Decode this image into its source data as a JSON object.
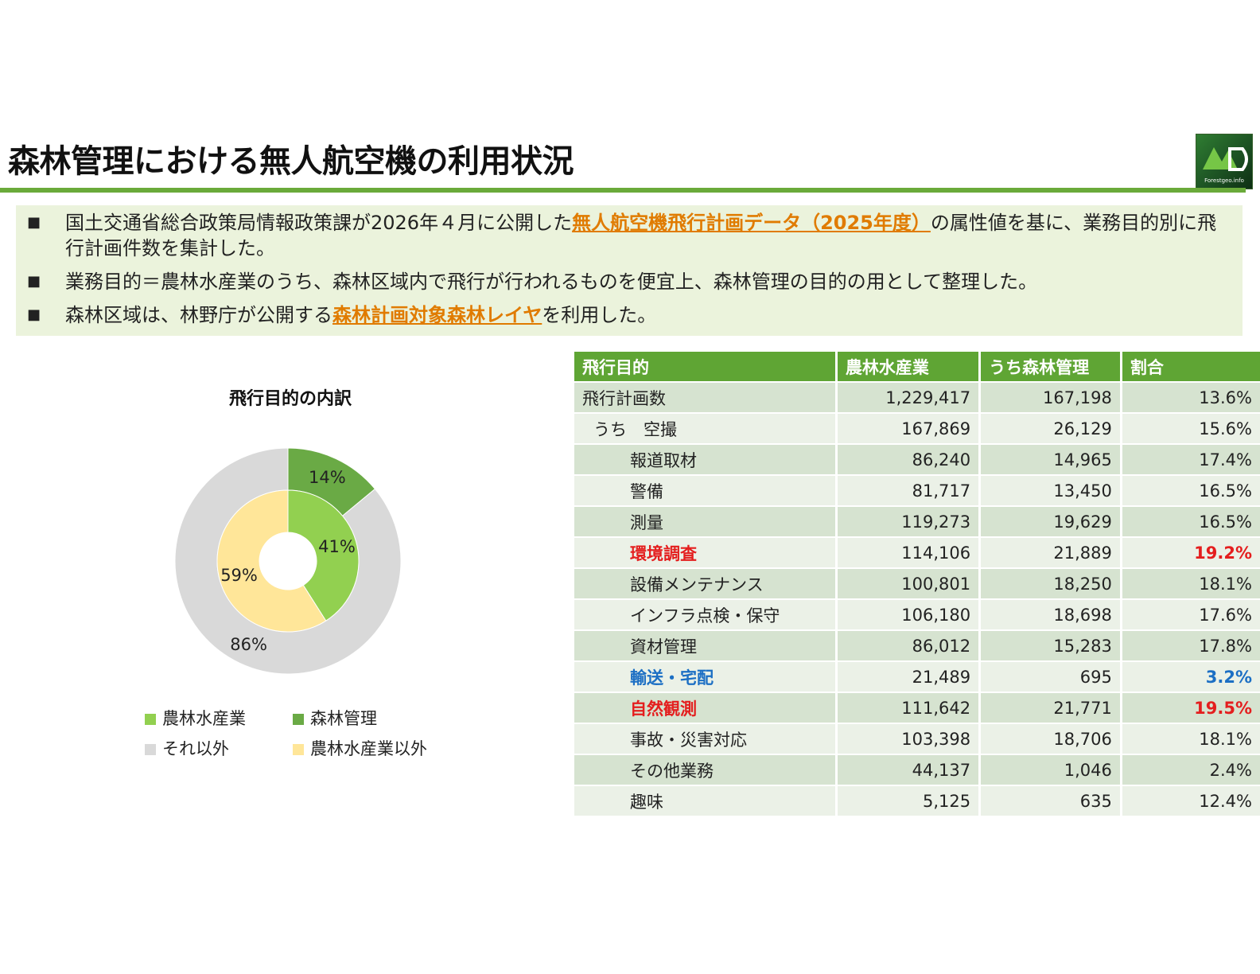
{
  "page": {
    "title": "森林管理における無人航空機の利用状況",
    "logo_text": "Forestgeo.info"
  },
  "notes": [
    {
      "bullet": "■",
      "before": "国土交通省総合政策局情報政策課が2026年４月に公開した",
      "link": "無人航空機飛行計画データ（2025年度）",
      "after": "の属性値を基に、業務目的別に飛行計画件数を集計した。"
    },
    {
      "bullet": "■",
      "before": "業務目的＝農林水産業のうち、森林区域内で飛行が行われるものを便宜上、森林管理の目的の用として整理した。",
      "link": "",
      "after": ""
    },
    {
      "bullet": "■",
      "before": "森林区域は、林野庁が公開する",
      "link": "森林計画対象森林レイヤ",
      "after": "を利用した。"
    }
  ],
  "chart_data": {
    "type": "pie",
    "variant": "nested-donut",
    "title": "飛行目的の内訳",
    "series": [
      {
        "name": "outer",
        "categories": [
          "森林管理",
          "それ以外"
        ],
        "values": [
          14,
          86
        ],
        "labels": [
          "14%",
          "86%"
        ],
        "colors": [
          "#6aaa45",
          "#d9d9d9"
        ]
      },
      {
        "name": "inner",
        "categories": [
          "農林水産業",
          "農林水産業以外"
        ],
        "values": [
          41,
          59
        ],
        "labels": [
          "41%",
          "59%"
        ],
        "colors": [
          "#92d050",
          "#ffe699"
        ]
      }
    ],
    "legend": [
      {
        "label": "農林水産業",
        "color": "#92d050"
      },
      {
        "label": "森林管理",
        "color": "#6aaa45"
      },
      {
        "label": "それ以外",
        "color": "#d9d9d9"
      },
      {
        "label": "農林水産業以外",
        "color": "#ffe699"
      }
    ],
    "legend_position": "bottom"
  },
  "table": {
    "headers": [
      "飛行目的",
      "農林水産業",
      "うち森林管理",
      "割合"
    ],
    "rows": [
      {
        "label": "飛行計画数",
        "a": "1,229,417",
        "b": "167,198",
        "pct": "13.6%",
        "indent": 0,
        "hl": ""
      },
      {
        "label": "うち　空撮",
        "a": "167,869",
        "b": "26,129",
        "pct": "15.6%",
        "indent": 1,
        "hl": ""
      },
      {
        "label": "報道取材",
        "a": "86,240",
        "b": "14,965",
        "pct": "17.4%",
        "indent": 2,
        "hl": ""
      },
      {
        "label": "警備",
        "a": "81,717",
        "b": "13,450",
        "pct": "16.5%",
        "indent": 2,
        "hl": ""
      },
      {
        "label": "測量",
        "a": "119,273",
        "b": "19,629",
        "pct": "16.5%",
        "indent": 2,
        "hl": ""
      },
      {
        "label": "環境調査",
        "a": "114,106",
        "b": "21,889",
        "pct": "19.2%",
        "indent": 2,
        "hl": "red"
      },
      {
        "label": "設備メンテナンス",
        "a": "100,801",
        "b": "18,250",
        "pct": "18.1%",
        "indent": 2,
        "hl": ""
      },
      {
        "label": "インフラ点検・保守",
        "a": "106,180",
        "b": "18,698",
        "pct": "17.6%",
        "indent": 2,
        "hl": ""
      },
      {
        "label": "資材管理",
        "a": "86,012",
        "b": "15,283",
        "pct": "17.8%",
        "indent": 2,
        "hl": ""
      },
      {
        "label": "輸送・宅配",
        "a": "21,489",
        "b": "695",
        "pct": "3.2%",
        "indent": 2,
        "hl": "blue"
      },
      {
        "label": "自然観測",
        "a": "111,642",
        "b": "21,771",
        "pct": "19.5%",
        "indent": 2,
        "hl": "red"
      },
      {
        "label": "事故・災害対応",
        "a": "103,398",
        "b": "18,706",
        "pct": "18.1%",
        "indent": 2,
        "hl": ""
      },
      {
        "label": "その他業務",
        "a": "44,137",
        "b": "1,046",
        "pct": "2.4%",
        "indent": 2,
        "hl": ""
      },
      {
        "label": "趣味",
        "a": "5,125",
        "b": "635",
        "pct": "12.4%",
        "indent": 2,
        "hl": ""
      }
    ]
  }
}
